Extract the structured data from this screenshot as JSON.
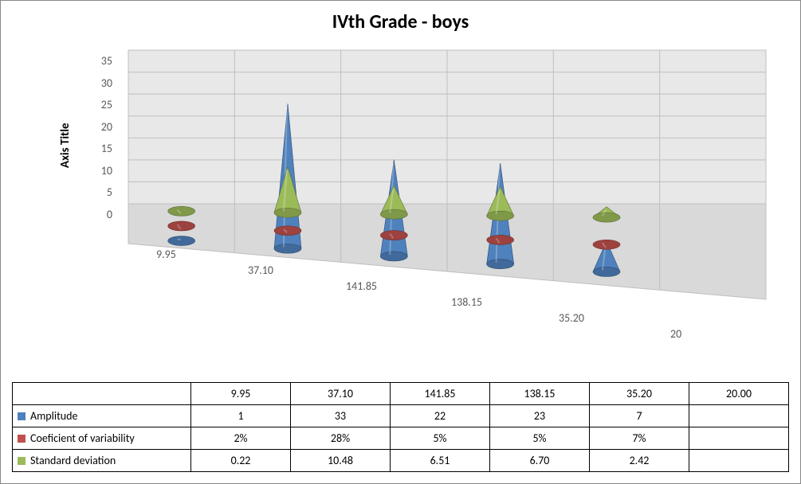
{
  "title": "IVth Grade - boys",
  "yaxis_title": "Axis Title",
  "chart": {
    "type": "bar-3d-cone",
    "ylim": [
      0,
      35
    ],
    "ytick_step": 5,
    "yticks": [
      "35",
      "30",
      "25",
      "20",
      "15",
      "10",
      "5",
      "0"
    ],
    "categories": [
      "9.95",
      "37.10",
      "141.85",
      "138.15",
      "35.20",
      "20"
    ],
    "series": [
      {
        "name": "Amplitude",
        "color": "#4f81bd",
        "values": [
          1,
          33,
          22,
          23,
          7,
          null
        ]
      },
      {
        "name": "Coeficient of variability",
        "color": "#c0504d",
        "values": [
          0.02,
          0.28,
          0.05,
          0.05,
          0.07,
          null
        ]
      },
      {
        "name": "Standard deviation",
        "color": "#9bbb59",
        "values": [
          0.22,
          10.48,
          6.51,
          6.7,
          2.42,
          null
        ]
      }
    ],
    "floor_color": "#d9d9d9",
    "wall_color": "#e8e8e8",
    "grid_color": "#bfbfbf",
    "label_color": "#595959",
    "label_fontsize": 14,
    "title_fontsize": 24
  },
  "table": {
    "header": [
      "9.95",
      "37.10",
      "141.85",
      "138.15",
      "35.20",
      "20.00"
    ],
    "rows": [
      {
        "label": "Amplitude",
        "color": "#4f81bd",
        "cells": [
          "1",
          "33",
          "22",
          "23",
          "7",
          ""
        ]
      },
      {
        "label": "Coeficient of variability",
        "color": "#c0504d",
        "cells": [
          "2%",
          "28%",
          "5%",
          "5%",
          "7%",
          ""
        ]
      },
      {
        "label": "Standard deviation",
        "color": "#9bbb59",
        "cells": [
          "0.22",
          "10.48",
          "6.51",
          "6.70",
          "2.42",
          ""
        ]
      }
    ]
  }
}
